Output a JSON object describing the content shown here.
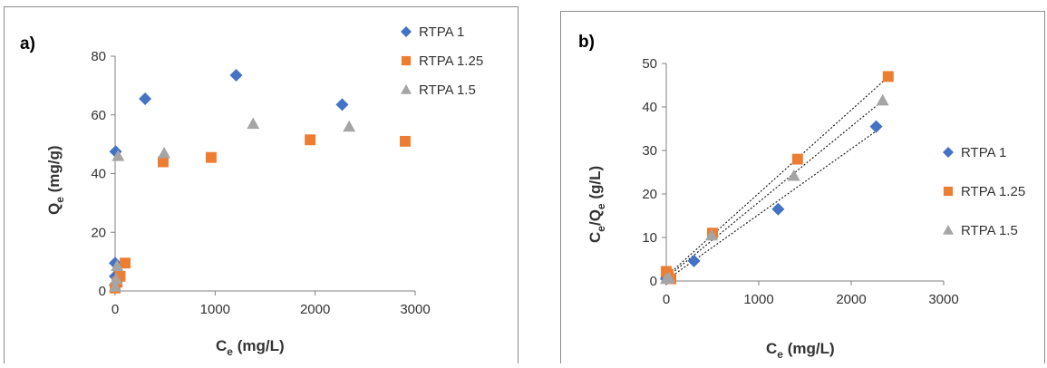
{
  "chart_data": [
    {
      "type": "scatter",
      "panel_label": "a)",
      "xlabel": "C",
      "xlabel_sub": "e",
      "xlabel_unit": " (mg/L)",
      "ylabel": "Q",
      "ylabel_sub": "e",
      "ylabel_unit": " (mg/g)",
      "xlim": [
        0,
        3000
      ],
      "ylim": [
        0,
        80
      ],
      "xticks": [
        0,
        1000,
        2000,
        3000
      ],
      "yticks": [
        0,
        20,
        40,
        60,
        80
      ],
      "grid": false,
      "legend_position": "top-right",
      "series": [
        {
          "name": "RTPA 1",
          "marker": "diamond",
          "color": "#4472C4",
          "points": [
            [
              0,
              2
            ],
            [
              0,
              5
            ],
            [
              0,
              9.5
            ],
            [
              5,
              47.5
            ],
            [
              300,
              65.5
            ],
            [
              1210,
              73.5
            ],
            [
              2270,
              63.5
            ]
          ]
        },
        {
          "name": "RTPA 1.25",
          "marker": "square",
          "color": "#ED7D31",
          "points": [
            [
              0,
              1
            ],
            [
              20,
              3
            ],
            [
              50,
              5
            ],
            [
              100,
              9.5
            ],
            [
              480,
              44
            ],
            [
              960,
              45.5
            ],
            [
              1950,
              51.5
            ],
            [
              2900,
              51
            ]
          ]
        },
        {
          "name": "RTPA 1.5",
          "marker": "triangle",
          "color": "#A5A5A5",
          "points": [
            [
              0,
              1.5
            ],
            [
              10,
              4
            ],
            [
              20,
              8.5
            ],
            [
              30,
              46
            ],
            [
              490,
              47
            ],
            [
              1380,
              57
            ],
            [
              2340,
              56
            ]
          ]
        }
      ]
    },
    {
      "type": "scatter",
      "panel_label": "b)",
      "xlabel": "C",
      "xlabel_sub": "e",
      "xlabel_unit": " (mg/L)",
      "ylabel": "C",
      "ylabel_sub": "e",
      "ylabel_mid": "/Q",
      "ylabel_sub2": "e",
      "ylabel_unit": " (g/L)",
      "xlim": [
        0,
        3000
      ],
      "ylim": [
        0,
        50
      ],
      "xticks": [
        0,
        1000,
        2000,
        3000
      ],
      "yticks": [
        0,
        10,
        20,
        30,
        40,
        50
      ],
      "grid": false,
      "legend_position": "right",
      "trendlines": true,
      "series": [
        {
          "name": "RTPA 1",
          "marker": "diamond",
          "color": "#4472C4",
          "points": [
            [
              0,
              0.5
            ],
            [
              5,
              1
            ],
            [
              300,
              4.6
            ],
            [
              1210,
              16.5
            ],
            [
              2270,
              35.5
            ]
          ]
        },
        {
          "name": "RTPA 1.25",
          "marker": "square",
          "color": "#ED7D31",
          "points": [
            [
              0,
              2.2
            ],
            [
              20,
              1.5
            ],
            [
              50,
              0.5
            ],
            [
              500,
              11
            ],
            [
              1420,
              28
            ],
            [
              2400,
              47
            ]
          ]
        },
        {
          "name": "RTPA 1.5",
          "marker": "triangle",
          "color": "#A5A5A5",
          "points": [
            [
              0,
              0.5
            ],
            [
              30,
              0.7
            ],
            [
              490,
              10.5
            ],
            [
              1380,
              24.2
            ],
            [
              2340,
              41.5
            ]
          ]
        }
      ]
    }
  ]
}
